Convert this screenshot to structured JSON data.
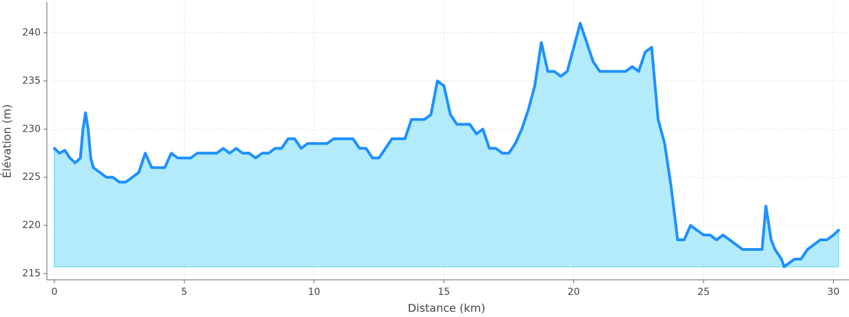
{
  "chart_data": {
    "type": "area",
    "xlabel": "Distance (km)",
    "ylabel": "Élévation (m)",
    "x": [
      0,
      0.2,
      0.4,
      0.6,
      0.8,
      1.0,
      1.1,
      1.2,
      1.3,
      1.4,
      1.5,
      1.75,
      2.0,
      2.25,
      2.5,
      2.75,
      3.0,
      3.25,
      3.5,
      3.75,
      4.0,
      4.25,
      4.5,
      4.75,
      5.0,
      5.25,
      5.5,
      5.75,
      6.0,
      6.25,
      6.5,
      6.75,
      7.0,
      7.25,
      7.5,
      7.75,
      8.0,
      8.25,
      8.5,
      8.75,
      9.0,
      9.25,
      9.5,
      9.75,
      10.0,
      10.25,
      10.5,
      10.75,
      11.0,
      11.25,
      11.5,
      11.75,
      12.0,
      12.25,
      12.5,
      12.75,
      13.0,
      13.25,
      13.5,
      13.75,
      14.0,
      14.25,
      14.5,
      14.75,
      15.0,
      15.25,
      15.5,
      15.75,
      16.0,
      16.25,
      16.5,
      16.75,
      17.0,
      17.25,
      17.5,
      17.75,
      18.0,
      18.25,
      18.5,
      18.75,
      19.0,
      19.25,
      19.5,
      19.75,
      20.0,
      20.25,
      20.5,
      20.75,
      21.0,
      21.25,
      21.5,
      21.75,
      22.0,
      22.25,
      22.5,
      22.75,
      23.0,
      23.25,
      23.5,
      23.75,
      24.0,
      24.25,
      24.5,
      24.75,
      25.0,
      25.25,
      25.5,
      25.75,
      26.0,
      26.25,
      26.5,
      26.75,
      27.0,
      27.25,
      27.4,
      27.6,
      27.75,
      28.0,
      28.1,
      28.25,
      28.5,
      28.75,
      29.0,
      29.25,
      29.5,
      29.75,
      30.0,
      30.2
    ],
    "values": [
      228,
      227.5,
      227.8,
      227,
      226.5,
      227,
      230,
      231.7,
      230,
      227,
      226,
      225.5,
      225,
      225,
      224.5,
      224.5,
      225,
      225.5,
      227.5,
      226,
      226,
      226,
      227.5,
      227,
      227,
      227,
      227.5,
      227.5,
      227.5,
      227.5,
      228,
      227.5,
      228,
      227.5,
      227.5,
      227,
      227.5,
      227.5,
      228,
      228,
      229,
      229,
      228,
      228.5,
      228.5,
      228.5,
      228.5,
      229,
      229,
      229,
      229,
      228,
      228,
      227,
      227,
      228,
      229,
      229,
      229,
      231,
      231,
      231,
      231.5,
      235,
      234.5,
      231.5,
      230.5,
      230.5,
      230.5,
      229.5,
      230,
      228,
      228,
      227.5,
      227.5,
      228.5,
      230,
      232,
      234.5,
      239,
      236,
      236,
      235.5,
      236,
      238.5,
      241,
      239,
      237,
      236,
      236,
      236,
      236,
      236,
      236.5,
      236,
      238,
      238.5,
      231,
      228.5,
      224,
      218.5,
      218.5,
      220,
      219.5,
      219,
      219,
      218.5,
      219,
      218.5,
      218,
      217.5,
      217.5,
      217.5,
      217.5,
      222,
      218.5,
      217.5,
      216.5,
      215.7,
      216,
      216.5,
      216.5,
      217.5,
      218,
      218.5,
      218.5,
      219,
      219.5
    ],
    "color": "#1e90ff",
    "fill_color": "#b3ebfb",
    "xlim": [
      -0.29,
      30.6
    ],
    "ylim": [
      214.35,
      243.2
    ],
    "xticks": [
      0,
      5,
      10,
      15,
      20,
      25,
      30
    ],
    "yticks": [
      215,
      220,
      225,
      230,
      235,
      240
    ],
    "grid": true
  }
}
